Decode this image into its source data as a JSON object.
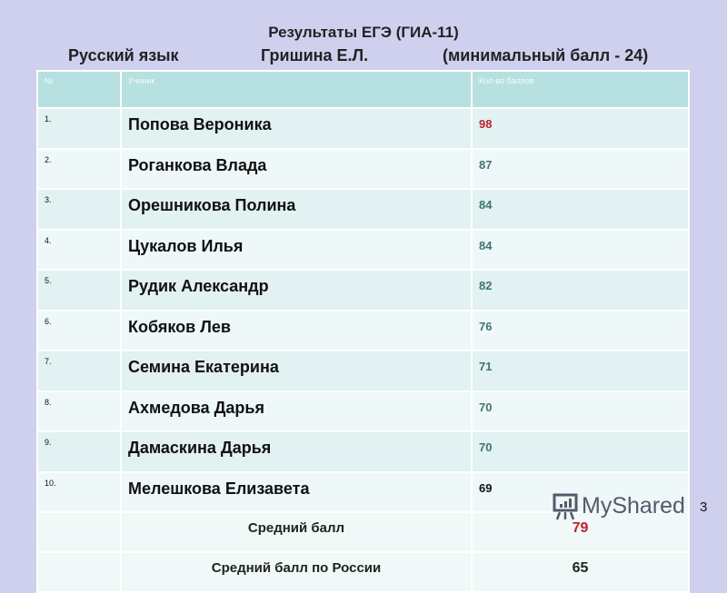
{
  "header": {
    "title": "Результаты ЕГЭ (ГИА-11)",
    "subject": "Русский язык",
    "teacher": "Гришина Е.Л.",
    "min_score": "(минимальный балл - 24)"
  },
  "table": {
    "columns": [
      "№",
      "Ученик",
      "Кол-во баллов"
    ],
    "rows": [
      {
        "n": "1.",
        "name": "Попова Вероника",
        "score": "98",
        "color": "#c0202a"
      },
      {
        "n": "2.",
        "name": "Роганкова Влада",
        "score": "87"
      },
      {
        "n": "3.",
        "name": "Орешникова Полина",
        "score": "84"
      },
      {
        "n": "4.",
        "name": "Цукалов Илья",
        "score": "84"
      },
      {
        "n": "5.",
        "name": "Рудик Александр",
        "score": "82"
      },
      {
        "n": "6.",
        "name": "Кобяков Лев",
        "score": "76"
      },
      {
        "n": "7.",
        "name": "Семина Екатерина",
        "score": "71"
      },
      {
        "n": "8.",
        "name": "Ахмедова Дарья",
        "score": "70"
      },
      {
        "n": "9.",
        "name": "Дамаскина Дарья",
        "score": "70"
      },
      {
        "n": "10.",
        "name": "Мелешкова Елизавета",
        "score": "69"
      }
    ],
    "average_label": "Средний балл",
    "average": "79",
    "russia_label": "Средний балл по России",
    "russia": "65"
  },
  "watermark": "MyShared",
  "page_number": "3"
}
